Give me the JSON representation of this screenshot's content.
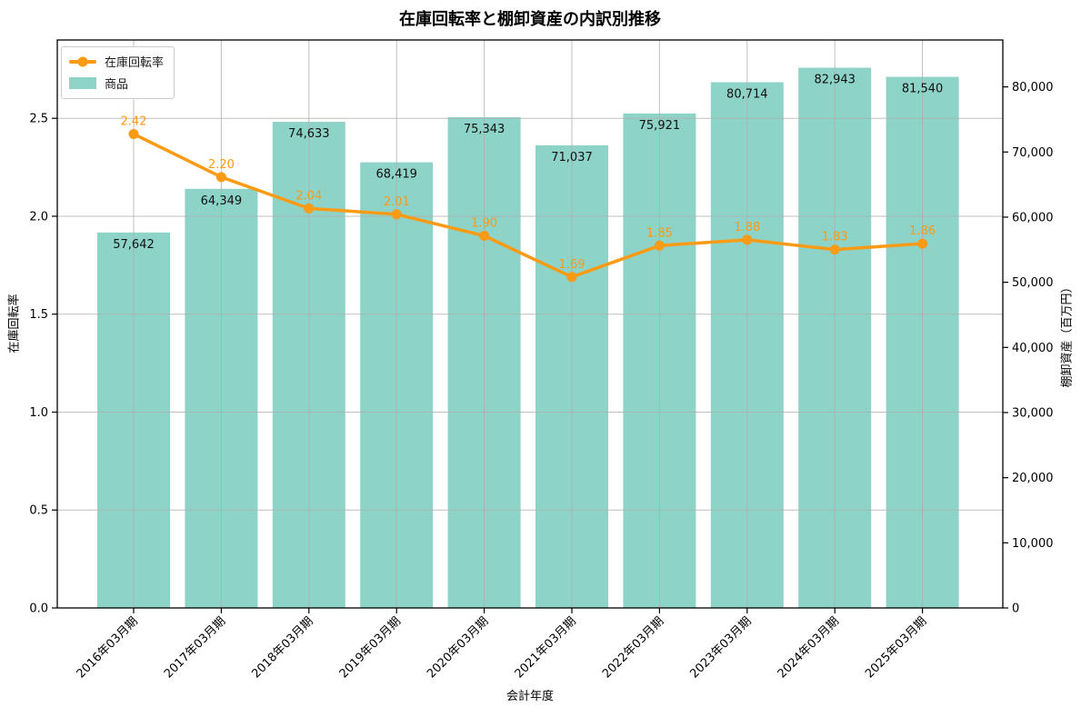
{
  "title": "在庫回転率と棚卸資産の内訳別推移",
  "legend": {
    "items": [
      {
        "label": "在庫回転率",
        "type": "line",
        "color": "#fa9a15"
      },
      {
        "label": "商品",
        "type": "patch",
        "color": "#8dd3c7"
      }
    ]
  },
  "chart_data": {
    "type": "bar+line dual-axis combo",
    "categories": [
      "2016年03月期",
      "2017年03月期",
      "2018年03月期",
      "2019年03月期",
      "2020年03月期",
      "2021年03月期",
      "2022年03月期",
      "2023年03月期",
      "2024年03月期",
      "2025年03月期"
    ],
    "series": [
      {
        "name": "商品",
        "type": "bar",
        "axis": "right",
        "color": "#8dd3c7",
        "values": [
          57642,
          64349,
          74633,
          68419,
          75343,
          71037,
          75921,
          80714,
          82943,
          81540
        ],
        "labels": [
          "57,642",
          "64,349",
          "74,633",
          "68,419",
          "75,343",
          "71,037",
          "75,921",
          "80,714",
          "82,943",
          "81,540"
        ]
      },
      {
        "name": "在庫回転率",
        "type": "line",
        "axis": "left",
        "color": "#fa9a15",
        "values": [
          2.42,
          2.2,
          2.04,
          2.01,
          1.9,
          1.69,
          1.85,
          1.88,
          1.83,
          1.86
        ],
        "labels": [
          "2.42",
          "2.20",
          "2.04",
          "2.01",
          "1.90",
          "1.69",
          "1.85",
          "1.88",
          "1.83",
          "1.86"
        ]
      }
    ],
    "left_axis": {
      "label": "在庫回転率",
      "range": [
        0,
        2.9
      ],
      "ticks": [
        0,
        0.5,
        1.0,
        1.5,
        2.0,
        2.5
      ],
      "tick_labels": [
        "0.0",
        "0.5",
        "1.0",
        "1.5",
        "2.0",
        "2.5"
      ]
    },
    "right_axis": {
      "label": "棚卸資産（百万円）",
      "range": [
        0,
        87200
      ],
      "ticks": [
        0,
        10000,
        20000,
        30000,
        40000,
        50000,
        60000,
        70000,
        80000
      ],
      "tick_labels": [
        "0",
        "10,000",
        "20,000",
        "30,000",
        "40,000",
        "50,000",
        "60,000",
        "70,000",
        "80,000"
      ]
    },
    "x_axis": {
      "label": "会計年度"
    },
    "grid": true,
    "grid_color": "#b0b0b0",
    "spine_color": "#000000",
    "bar_label_color": "#111111",
    "legend_position": "upper-left"
  }
}
